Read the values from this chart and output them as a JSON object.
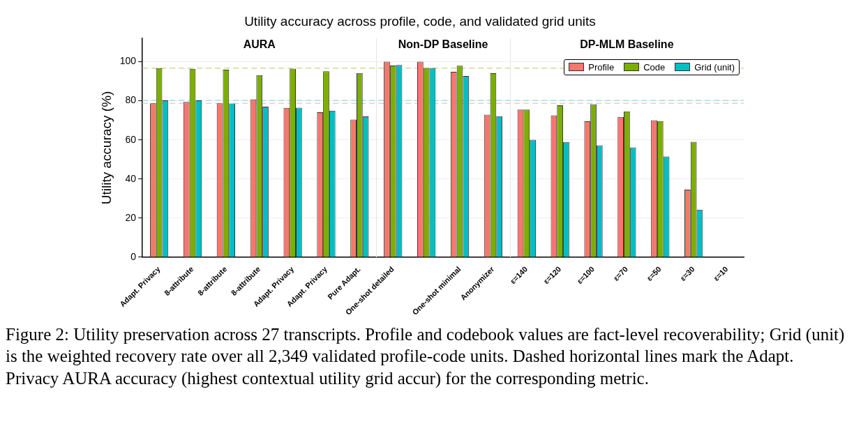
{
  "chart_data": {
    "type": "bar",
    "title": "Utility accuracy across profile, code, and validated grid units",
    "ylabel": "Utility accuracy (%)",
    "categories": [
      "Adapt. Privacy",
      "8-attribute",
      "8-attribute",
      "8-attribute",
      "Adapt. Privacy",
      "Adapt. Privacy",
      "Pure Adapt.",
      "One-shot detailed",
      null,
      "One-shot minimal",
      "Anonymizer",
      "ε=140",
      "ε=120",
      "ε=100",
      "ε=70",
      "ε=50",
      "ε=30",
      "ε=10"
    ],
    "series": [
      {
        "name": "Profile",
        "color": "#f8766d",
        "values": [
          78.7,
          79.4,
          78.7,
          80.7,
          76.4,
          74.1,
          70.4,
          100,
          100,
          94.8,
          72.9,
          75.5,
          72.5,
          69.5,
          71.7,
          70.0,
          34.6,
          null
        ]
      },
      {
        "name": "Code",
        "color": "#7cae00",
        "values": [
          96.7,
          96.3,
          95.9,
          93.1,
          96.4,
          95.1,
          94.2,
          98.0,
          96.8,
          97.9,
          94.1,
          75.5,
          77.7,
          78.2,
          74.6,
          69.6,
          59.0,
          null
        ]
      },
      {
        "name": "Grid (unit)",
        "color": "#00bfc4",
        "values": [
          80.2,
          80.2,
          78.6,
          77.0,
          76.5,
          74.9,
          72.0,
          98.3,
          96.8,
          92.7,
          72.1,
          60.1,
          58.9,
          57.2,
          56.1,
          51.5,
          24.3,
          null
        ]
      }
    ],
    "ylim": [
      0,
      112
    ],
    "yticks": [
      0,
      20,
      40,
      60,
      80,
      100
    ],
    "grid": "y",
    "legend": "top right",
    "ref_lines": [
      {
        "axis": "y",
        "value": 96.7,
        "color": "#c9dc99",
        "line_style": "dashed"
      },
      {
        "axis": "y",
        "value": 80.2,
        "color": "#99e5e7",
        "line_style": "dashed"
      },
      {
        "axis": "y",
        "value": 78.7,
        "color": "#fcc8c4",
        "line_style": "dashed"
      }
    ],
    "annotations": [
      "AURA",
      "Non-DP Baseline",
      "DP-MLM Baseline",
      "Figure 2: Utility preservation across 27 transcripts. Profile and codebook values are fact-level recoverability; Grid (unit) is the weighted recovery rate over all 2,349 validated profile-code units. Dashed horizontal lines mark the Adapt. Privacy AURA accuracy (highest contextual utility grid accur) for the corresponding metric."
    ]
  }
}
